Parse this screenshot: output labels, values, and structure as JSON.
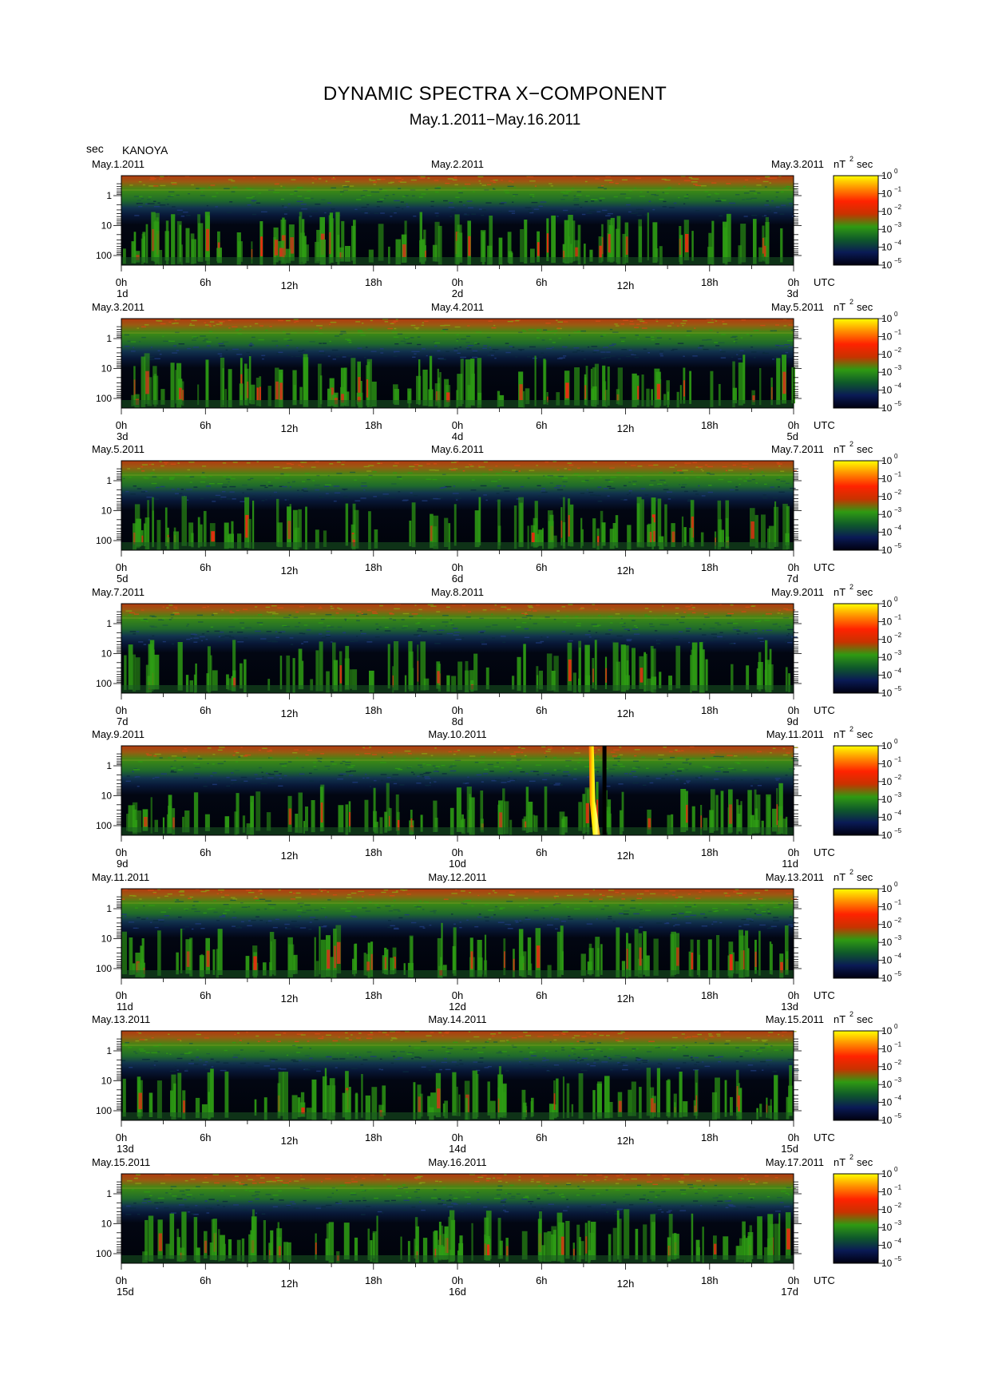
{
  "page": {
    "title": "DYNAMIC SPECTRA X−COMPONENT",
    "subtitle": "May.1.2011−May.16.2011",
    "y_unit_label": "sec",
    "station": "KANOYA"
  },
  "chart_data": {
    "type": "heatmap",
    "title": "DYNAMIC SPECTRA X−COMPONENT",
    "subtitle": "May.1.2011−May.16.2011",
    "ylabel": "sec",
    "y_ticks": [
      "1",
      "10",
      "100"
    ],
    "y_scale": "log",
    "x_ticks": [
      "0h",
      "6h",
      "12h",
      "18h",
      "0h",
      "6h",
      "12h",
      "18h",
      "0h"
    ],
    "x_unit": "UTC",
    "colorbar": {
      "unit": "nT",
      "unit_sup": "2",
      "unit_suffix": "sec",
      "ticks": [
        {
          "base": "10",
          "exp": "0"
        },
        {
          "base": "10",
          "exp": "−1"
        },
        {
          "base": "10",
          "exp": "−2"
        },
        {
          "base": "10",
          "exp": "−3"
        },
        {
          "base": "10",
          "exp": "−4"
        },
        {
          "base": "10",
          "exp": "−5"
        }
      ],
      "colors": [
        "#ffff00",
        "#ff8c00",
        "#ff2200",
        "#c83200",
        "#2f9a12",
        "#0f5a2a",
        "#0a1a55",
        "#000010"
      ]
    },
    "panels": [
      {
        "date_left": "May.1.2011",
        "date_mid": "May.2.2011",
        "date_right": "May.3.2011",
        "day_left": "1d",
        "day_mid": "2d",
        "day_right": "3d",
        "seed": 11,
        "activity": 0.8
      },
      {
        "date_left": "May.3.2011",
        "date_mid": "May.4.2011",
        "date_right": "May.5.2011",
        "day_left": "3d",
        "day_mid": "4d",
        "day_right": "5d",
        "seed": 23,
        "activity": 0.7
      },
      {
        "date_left": "May.5.2011",
        "date_mid": "May.6.2011",
        "date_right": "May.7.2011",
        "day_left": "5d",
        "day_mid": "6d",
        "day_right": "7d",
        "seed": 37,
        "activity": 0.55
      },
      {
        "date_left": "May.7.2011",
        "date_mid": "May.8.2011",
        "date_right": "May.9.2011",
        "day_left": "7d",
        "day_mid": "8d",
        "day_right": "9d",
        "seed": 41,
        "activity": 0.5
      },
      {
        "date_left": "May.9.2011",
        "date_mid": "May.10.2011",
        "date_right": "May.11.2011",
        "day_left": "9d",
        "day_mid": "10d",
        "day_right": "11d",
        "seed": 53,
        "activity": 0.6,
        "event_hour": 33.5
      },
      {
        "date_left": "May.11.2011",
        "date_mid": "May.12.2011",
        "date_right": "May.13.2011",
        "day_left": "11d",
        "day_mid": "12d",
        "day_right": "13d",
        "seed": 67,
        "activity": 0.55
      },
      {
        "date_left": "May.13.2011",
        "date_mid": "May.14.2011",
        "date_right": "May.15.2011",
        "day_left": "13d",
        "day_mid": "14d",
        "day_right": "15d",
        "seed": 71,
        "activity": 0.5
      },
      {
        "date_left": "May.15.2011",
        "date_mid": "May.16.2011",
        "date_right": "May.17.2011",
        "day_left": "15d",
        "day_mid": "16d",
        "day_right": "17d",
        "seed": 89,
        "activity": 0.75
      }
    ]
  }
}
